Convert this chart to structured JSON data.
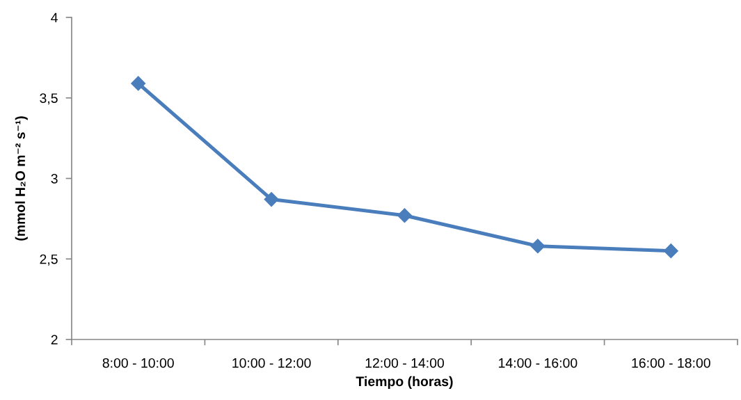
{
  "chart_data": {
    "type": "line",
    "xlabel": "Tiempo (horas)",
    "ylabel": "(mmol H₂O m⁻² s⁻¹)",
    "categories": [
      "8:00 - 10:00",
      "10:00 - 12:00",
      "12:00 - 14:00",
      "14:00 - 16:00",
      "16:00 - 18:00"
    ],
    "series": [
      {
        "color": "#4a7dbb",
        "values": [
          3.59,
          2.87,
          2.77,
          2.58,
          2.55
        ]
      }
    ],
    "ylim": [
      2,
      4
    ],
    "yticks": [
      2,
      {
        "value": 2.5,
        "label": "2,5"
      },
      3,
      {
        "value": 3.5,
        "label": "3,5"
      },
      4
    ],
    "marker": "diamond",
    "line_style": "solid"
  }
}
